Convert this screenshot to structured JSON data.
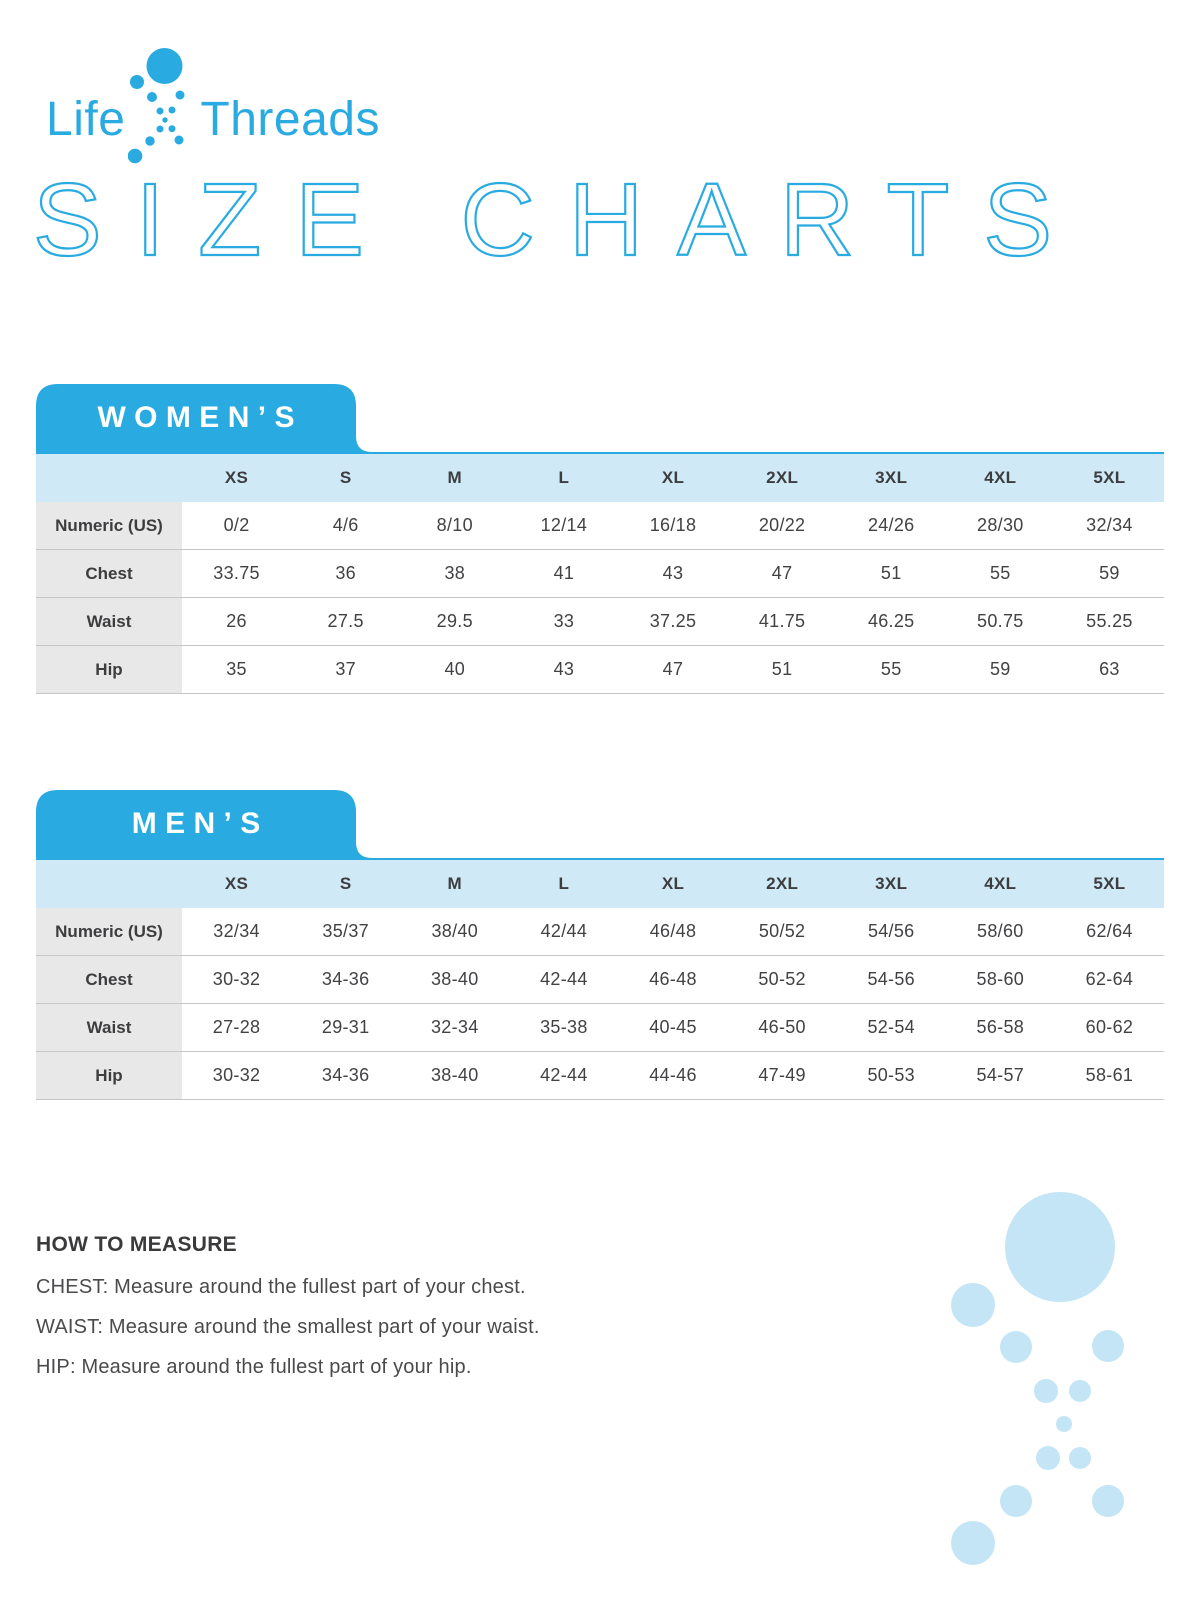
{
  "brand": {
    "life": "Life",
    "threads": "Threads"
  },
  "page_title": "SIZE CHARTS",
  "colors": {
    "accent_blue": "#29abe2",
    "header_row_blue": "#cfe9f7",
    "label_gray": "#e8e8e8",
    "text_dark": "#3d3d3f",
    "separator_gray": "#c6c6c6",
    "decoration_pale_blue": "#c3e5f5"
  },
  "tables": [
    {
      "tab_label": "WOMEN’S",
      "columns": [
        "XS",
        "S",
        "M",
        "L",
        "XL",
        "2XL",
        "3XL",
        "4XL",
        "5XL"
      ],
      "rows": [
        {
          "label": "Numeric (US)",
          "values": [
            "0/2",
            "4/6",
            "8/10",
            "12/14",
            "16/18",
            "20/22",
            "24/26",
            "28/30",
            "32/34"
          ]
        },
        {
          "label": "Chest",
          "values": [
            "33.75",
            "36",
            "38",
            "41",
            "43",
            "47",
            "51",
            "55",
            "59"
          ]
        },
        {
          "label": "Waist",
          "values": [
            "26",
            "27.5",
            "29.5",
            "33",
            "37.25",
            "41.75",
            "46.25",
            "50.75",
            "55.25"
          ]
        },
        {
          "label": "Hip",
          "values": [
            "35",
            "37",
            "40",
            "43",
            "47",
            "51",
            "55",
            "59",
            "63"
          ]
        }
      ]
    },
    {
      "tab_label": "MEN’S",
      "columns": [
        "XS",
        "S",
        "M",
        "L",
        "XL",
        "2XL",
        "3XL",
        "4XL",
        "5XL"
      ],
      "rows": [
        {
          "label": "Numeric (US)",
          "values": [
            "32/34",
            "35/37",
            "38/40",
            "42/44",
            "46/48",
            "50/52",
            "54/56",
            "58/60",
            "62/64"
          ]
        },
        {
          "label": "Chest",
          "values": [
            "30-32",
            "34-36",
            "38-40",
            "42-44",
            "46-48",
            "50-52",
            "54-56",
            "58-60",
            "62-64"
          ]
        },
        {
          "label": "Waist",
          "values": [
            "27-28",
            "29-31",
            "32-34",
            "35-38",
            "40-45",
            "46-50",
            "52-54",
            "56-58",
            "60-62"
          ]
        },
        {
          "label": "Hip",
          "values": [
            "30-32",
            "34-36",
            "38-40",
            "42-44",
            "44-46",
            "47-49",
            "50-53",
            "54-57",
            "58-61"
          ]
        }
      ]
    }
  ],
  "how_to_measure": {
    "title": "HOW TO MEASURE",
    "lines": [
      "CHEST: Measure around the fullest part of your chest.",
      "WAIST: Measure around the smallest part of your waist.",
      "HIP: Measure around the fullest part of your hip."
    ]
  }
}
